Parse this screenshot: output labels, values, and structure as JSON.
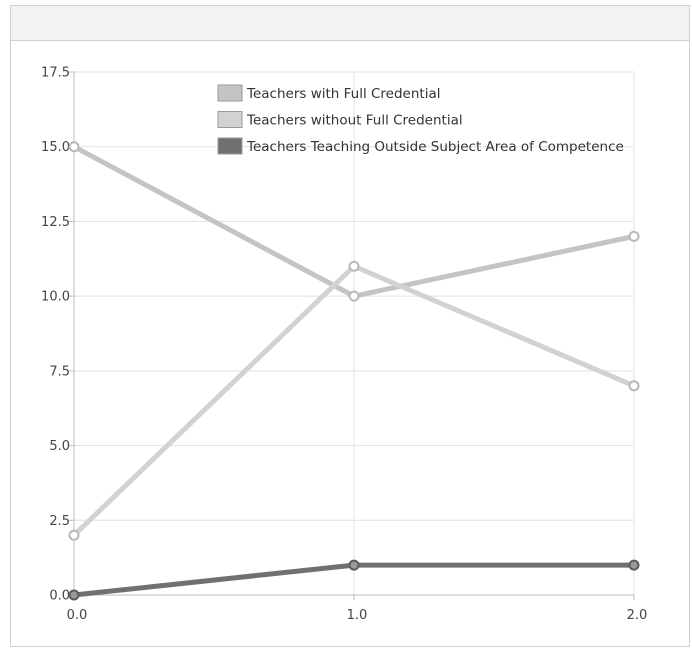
{
  "chart_data": {
    "type": "line",
    "x": [
      0.0,
      1.0,
      2.0
    ],
    "xticks": [
      "0.0",
      "1.0",
      "2.0"
    ],
    "yticks": [
      "0.0",
      "2.5",
      "5.0",
      "7.5",
      "10.0",
      "12.5",
      "15.0",
      "17.5"
    ],
    "ytick_values": [
      0,
      2.5,
      5,
      7.5,
      10,
      12.5,
      15,
      17.5
    ],
    "xlim": [
      0,
      2
    ],
    "ylim": [
      0,
      17.5
    ],
    "grid": true,
    "legend_position": "top-center",
    "series": [
      {
        "name": "Teachers with Full Credential",
        "values": [
          15,
          10,
          12
        ],
        "color": "#c4c4c4"
      },
      {
        "name": "Teachers without Full Credential",
        "values": [
          2,
          11,
          7
        ],
        "color": "#d2d2d2"
      },
      {
        "name": "Teachers Teaching Outside Subject Area of Competence",
        "values": [
          0,
          1,
          1
        ],
        "color": "#707070"
      }
    ]
  }
}
